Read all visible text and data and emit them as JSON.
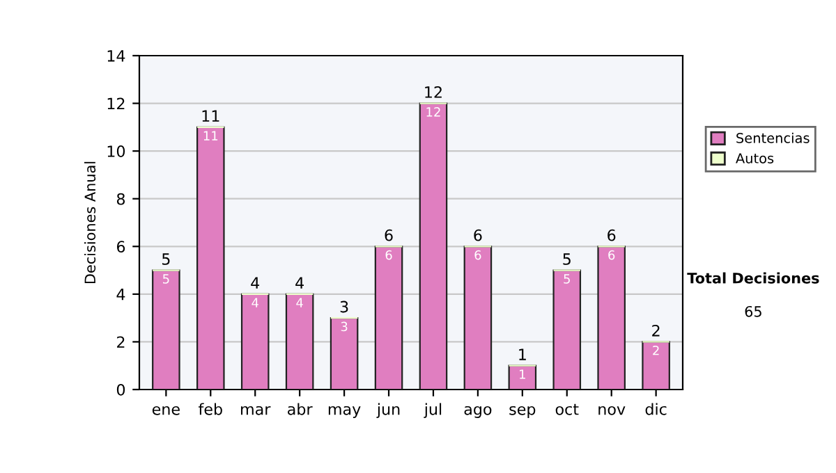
{
  "chart_data": {
    "type": "bar",
    "ylabel": "Decisiones Anual",
    "categories": [
      "ene",
      "feb",
      "mar",
      "abr",
      "may",
      "jun",
      "jul",
      "ago",
      "sep",
      "oct",
      "nov",
      "dic"
    ],
    "series": [
      {
        "name": "Sentencias",
        "color": "#e07ec0",
        "values": [
          5,
          11,
          4,
          4,
          3,
          6,
          12,
          6,
          1,
          5,
          6,
          2
        ],
        "value_labels": [
          "5",
          "11",
          "4",
          "4",
          "3",
          "6",
          "12",
          "6",
          "1",
          "5",
          "6",
          "2"
        ]
      },
      {
        "name": "Autos",
        "color": "#eeffcc",
        "values": [
          0,
          0,
          0,
          0,
          0,
          0,
          0,
          0,
          0,
          0,
          0,
          0
        ]
      }
    ],
    "stacked": true,
    "totals": [
      "5",
      "11",
      "4",
      "4",
      "3",
      "6",
      "12",
      "6",
      "1",
      "5",
      "6",
      "2"
    ],
    "ylim": [
      0,
      14
    ],
    "yticks": [
      0,
      2,
      4,
      6,
      8,
      10,
      12,
      14
    ],
    "grid": "y",
    "legend": "right",
    "annotations": [
      "Total Decisiones",
      "65"
    ]
  }
}
